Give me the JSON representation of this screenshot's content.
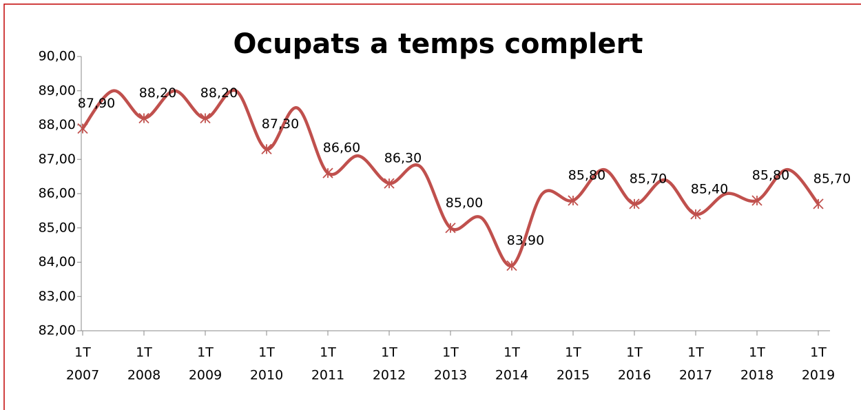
{
  "chart_data": {
    "type": "line",
    "title": "Ocupats a temps complert",
    "categories": [
      [
        "1T",
        "2007"
      ],
      null,
      [
        "1T",
        "2008"
      ],
      null,
      [
        "1T",
        "2009"
      ],
      null,
      [
        "1T",
        "2010"
      ],
      null,
      [
        "1T",
        "2011"
      ],
      null,
      [
        "1T",
        "2012"
      ],
      null,
      [
        "1T",
        "2013"
      ],
      null,
      [
        "1T",
        "2014"
      ],
      null,
      [
        "1T",
        "2015"
      ],
      null,
      [
        "1T",
        "2016"
      ],
      null,
      [
        "1T",
        "2017"
      ],
      null,
      [
        "1T",
        "2018"
      ],
      null,
      [
        "1T",
        "2019"
      ]
    ],
    "series": [
      {
        "color": "#c0504d",
        "values": [
          87.9,
          89.0,
          88.2,
          89.0,
          88.2,
          89.0,
          87.3,
          88.5,
          86.6,
          87.1,
          86.3,
          86.8,
          85.0,
          85.3,
          83.9,
          86.0,
          85.8,
          86.7,
          85.7,
          86.4,
          85.4,
          86.0,
          85.8,
          86.7,
          85.7
        ],
        "value_labels": [
          "87,90",
          null,
          "88,20",
          null,
          "88,20",
          null,
          "87,30",
          null,
          "86,60",
          null,
          "86,30",
          null,
          "85,00",
          null,
          "83,90",
          null,
          "85,80",
          null,
          "85,70",
          null,
          "85,40",
          null,
          "85,80",
          null,
          "85,70"
        ]
      }
    ],
    "ylim": [
      82,
      90
    ],
    "yticks": [
      {
        "value": 82,
        "label": "82,00"
      },
      {
        "value": 83,
        "label": "83,00"
      },
      {
        "value": 84,
        "label": "84,00"
      },
      {
        "value": 85,
        "label": "85,00"
      },
      {
        "value": 86,
        "label": "86,00"
      },
      {
        "value": 87,
        "label": "87,00"
      },
      {
        "value": 88,
        "label": "88,00"
      },
      {
        "value": 89,
        "label": "89,00"
      },
      {
        "value": 90,
        "label": "90,00"
      }
    ]
  }
}
